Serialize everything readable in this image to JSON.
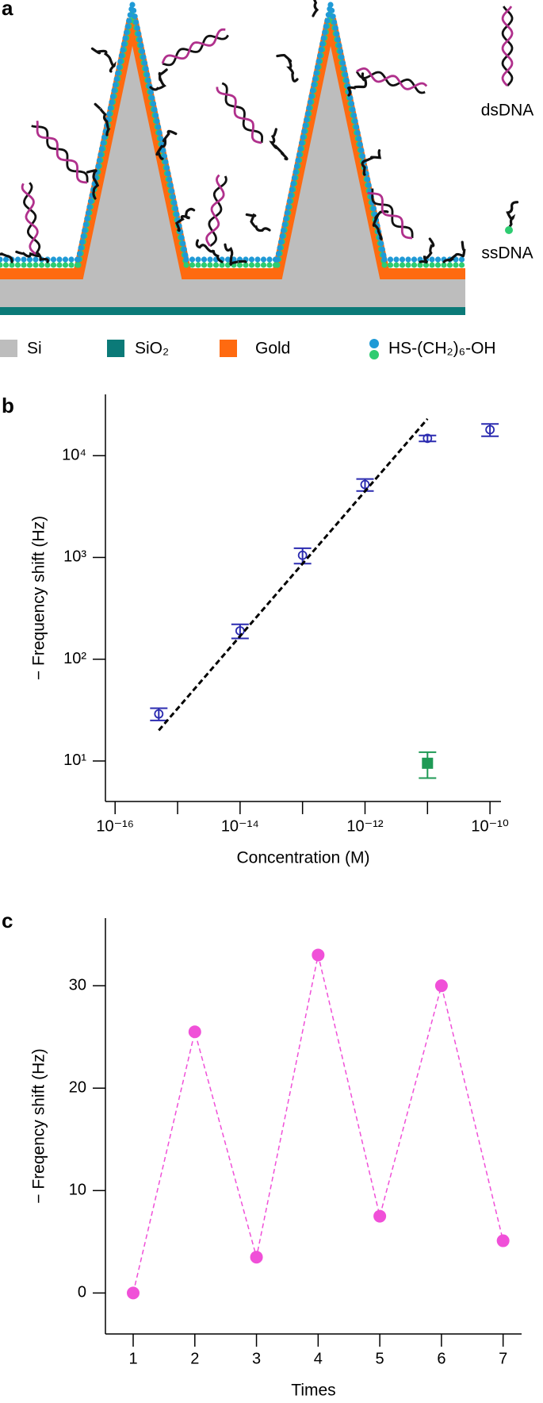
{
  "diagram": {
    "label": "a",
    "legend": [
      "Si",
      "SiO₂",
      "Gold",
      "HS-(CH₂)₆-OH"
    ],
    "annotations": [
      "dsDNA",
      "ssDNA"
    ]
  },
  "chart_data": [
    {
      "type": "scatter",
      "label": "b",
      "x_label": "Concentration (M)",
      "y_label": "− Frequency shift (Hz)",
      "xlog": true,
      "ylog": true,
      "xlim": [
        7e-17,
        1.5e-10
      ],
      "ylim": [
        4,
        40000
      ],
      "xticks": [
        {
          "value": 1e-16,
          "label": "10⁻¹⁶"
        },
        {
          "value": 1e-14,
          "label": "10⁻¹⁴"
        },
        {
          "value": 1e-12,
          "label": "10⁻¹²"
        },
        {
          "value": 1e-10,
          "label": "10⁻¹⁰"
        }
      ],
      "xminor_ticks": [
        1e-15,
        1e-13,
        1e-11
      ],
      "yticks": [
        {
          "value": 10,
          "label": "10¹"
        },
        {
          "value": 100,
          "label": "10²"
        },
        {
          "value": 1000,
          "label": "10³"
        },
        {
          "value": 10000,
          "label": "10⁴"
        }
      ],
      "series": [
        {
          "color": "#2b2bb0",
          "marker": "open-circle",
          "x": [
            5e-16,
            1e-14,
            1e-13,
            1e-12,
            1e-11,
            1e-10
          ],
          "values": [
            29,
            190,
            1050,
            5200,
            14800,
            18000
          ],
          "errors": [
            4,
            30,
            180,
            700,
            1000,
            2500
          ]
        },
        {
          "color": "#1f9a55",
          "marker": "square",
          "x": [
            1e-11
          ],
          "values": [
            9.5
          ],
          "errors": [
            2.7
          ]
        },
        {
          "color": "#000000",
          "marker": "dashed-line",
          "x": [
            5e-16,
            1e-11
          ],
          "values": [
            20,
            23000
          ]
        }
      ]
    },
    {
      "type": "line",
      "label": "c",
      "x_label": "Times",
      "y_label": "− Freqency shift (Hz)",
      "xlim": [
        0.55,
        7.3
      ],
      "ylim": [
        -4,
        36.6
      ],
      "xticks": [
        1,
        2,
        3,
        4,
        5,
        6,
        7
      ],
      "yticks": [
        0,
        10,
        20,
        30
      ],
      "series": [
        {
          "color": "#f050d8",
          "marker": "dot-dashed-line",
          "x": [
            1,
            2,
            3,
            4,
            5,
            6,
            7
          ],
          "values": [
            0,
            25.5,
            3.5,
            33,
            7.5,
            30,
            5.1
          ]
        }
      ]
    }
  ]
}
